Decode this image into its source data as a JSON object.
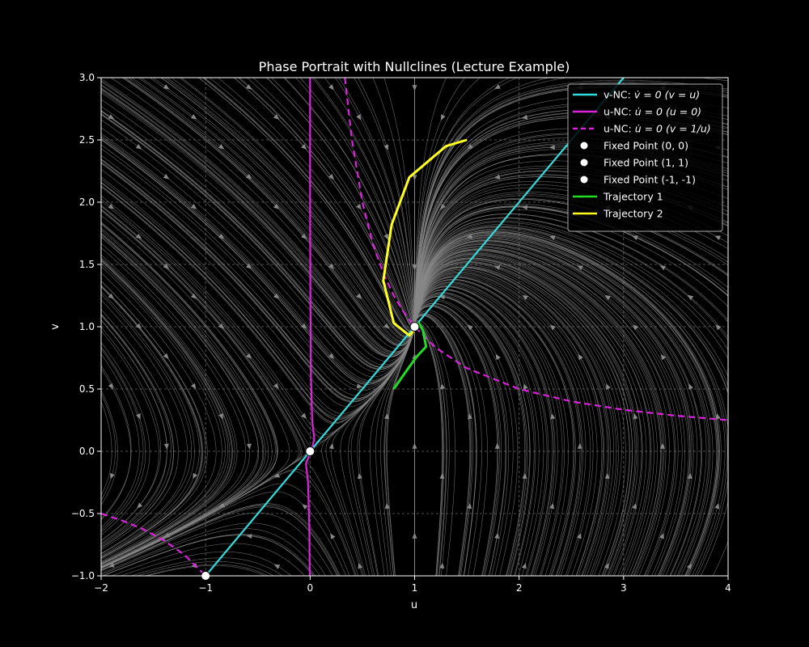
{
  "chart_data": {
    "type": "line",
    "title": "Phase Portrait with Nullclines (Lecture Example)",
    "xlabel": "u",
    "ylabel": "v",
    "xlim": [
      -2,
      4
    ],
    "ylim": [
      -1,
      3
    ],
    "xticks": [
      -2,
      -1,
      0,
      1,
      2,
      3,
      4
    ],
    "yticks": [
      -1.0,
      -0.5,
      0.0,
      0.5,
      1.0,
      1.5,
      2.0,
      2.5,
      3.0
    ],
    "xtick_labels": [
      "−2",
      "−1",
      "0",
      "1",
      "2",
      "3",
      "4"
    ],
    "ytick_labels": [
      "−1.0",
      "−0.5",
      "0.0",
      "0.5",
      "1.0",
      "1.5",
      "2.0",
      "2.5",
      "3.0"
    ],
    "grid": true,
    "legend_position": "top-right",
    "background_color": "#000000",
    "streamline_color": "#888888",
    "streamline_field": {
      "du": "v - u*v",
      "dv": "u - v"
    },
    "legend": [
      {
        "label_prefix": "v-NC: ",
        "label_math": "v̇ = 0 (v = u)",
        "color": "#33dddd",
        "style": "solid"
      },
      {
        "label_prefix": "u-NC: ",
        "label_math": "u̇ = 0 (u = 0)",
        "color": "#dd22dd",
        "style": "solid"
      },
      {
        "label_prefix": "u-NC: ",
        "label_math": "u̇ = 0 (v = 1/u)",
        "color": "#dd22dd",
        "style": "dashed"
      },
      {
        "label_prefix": "Fixed Point (0, 0)",
        "label_math": "",
        "color": "#ffffff",
        "style": "marker"
      },
      {
        "label_prefix": "Fixed Point (1, 1)",
        "label_math": "",
        "color": "#ffffff",
        "style": "marker"
      },
      {
        "label_prefix": "Fixed Point (-1, -1)",
        "label_math": "",
        "color": "#ffffff",
        "style": "marker"
      },
      {
        "label_prefix": "Trajectory 1",
        "label_math": "",
        "color": "#22dd22",
        "style": "solid"
      },
      {
        "label_prefix": "Trajectory 2",
        "label_math": "",
        "color": "#ffff22",
        "style": "solid"
      }
    ],
    "nullclines": [
      {
        "name": "v-NC (v = u)",
        "color": "#33dddd",
        "dashed": false,
        "points": [
          [
            -1.05,
            -1.05
          ],
          [
            3.0,
            3.0
          ]
        ]
      },
      {
        "name": "u-NC (u = 0)",
        "color": "#dd22dd",
        "dashed": false,
        "points": [
          [
            0.0,
            3.0
          ],
          [
            0.0,
            2.0
          ],
          [
            0.003,
            1.2
          ],
          [
            0.008,
            0.6
          ],
          [
            0.02,
            0.25
          ],
          [
            0.04,
            0.1
          ],
          [
            0.02,
            0.03
          ],
          [
            -0.04,
            -0.1
          ],
          [
            -0.02,
            -0.25
          ],
          [
            -0.008,
            -0.6
          ],
          [
            -0.003,
            -1.0
          ]
        ]
      },
      {
        "name": "u-NC (v = 1/u) right",
        "color": "#dd22dd",
        "dashed": true,
        "points": [
          [
            0.333,
            3.0
          ],
          [
            0.4,
            2.5
          ],
          [
            0.5,
            2.0
          ],
          [
            0.6,
            1.667
          ],
          [
            0.7,
            1.429
          ],
          [
            0.8,
            1.25
          ],
          [
            0.9,
            1.111
          ],
          [
            1.0,
            1.0
          ],
          [
            1.2,
            0.833
          ],
          [
            1.5,
            0.667
          ],
          [
            2.0,
            0.5
          ],
          [
            2.5,
            0.4
          ],
          [
            3.0,
            0.333
          ],
          [
            3.5,
            0.286
          ],
          [
            4.0,
            0.25
          ]
        ]
      },
      {
        "name": "u-NC (v = 1/u) left",
        "color": "#dd22dd",
        "dashed": true,
        "points": [
          [
            -2.0,
            -0.5
          ],
          [
            -1.8,
            -0.556
          ],
          [
            -1.6,
            -0.625
          ],
          [
            -1.4,
            -0.714
          ],
          [
            -1.2,
            -0.833
          ],
          [
            -1.0,
            -1.0
          ]
        ]
      }
    ],
    "fixed_points": [
      {
        "name": "Fixed Point (0, 0)",
        "x": 0,
        "y": 0
      },
      {
        "name": "Fixed Point (1, 1)",
        "x": 1,
        "y": 1
      },
      {
        "name": "Fixed Point (-1, -1)",
        "x": -1,
        "y": -1
      }
    ],
    "trajectories": [
      {
        "name": "Trajectory 1",
        "color": "#22dd22",
        "points": [
          [
            0.8,
            0.5
          ],
          [
            0.9,
            0.62
          ],
          [
            1.02,
            0.76
          ],
          [
            1.11,
            0.84
          ],
          [
            1.08,
            0.97
          ],
          [
            1.04,
            1.03
          ],
          [
            0.98,
            0.98
          ]
        ]
      },
      {
        "name": "Trajectory 2",
        "color": "#ffff22",
        "points": [
          [
            1.5,
            2.5
          ],
          [
            1.3,
            2.45
          ],
          [
            0.95,
            2.2
          ],
          [
            0.78,
            1.82
          ],
          [
            0.7,
            1.37
          ],
          [
            0.8,
            1.03
          ],
          [
            0.95,
            0.93
          ],
          [
            1.02,
            1.0
          ]
        ]
      }
    ]
  }
}
